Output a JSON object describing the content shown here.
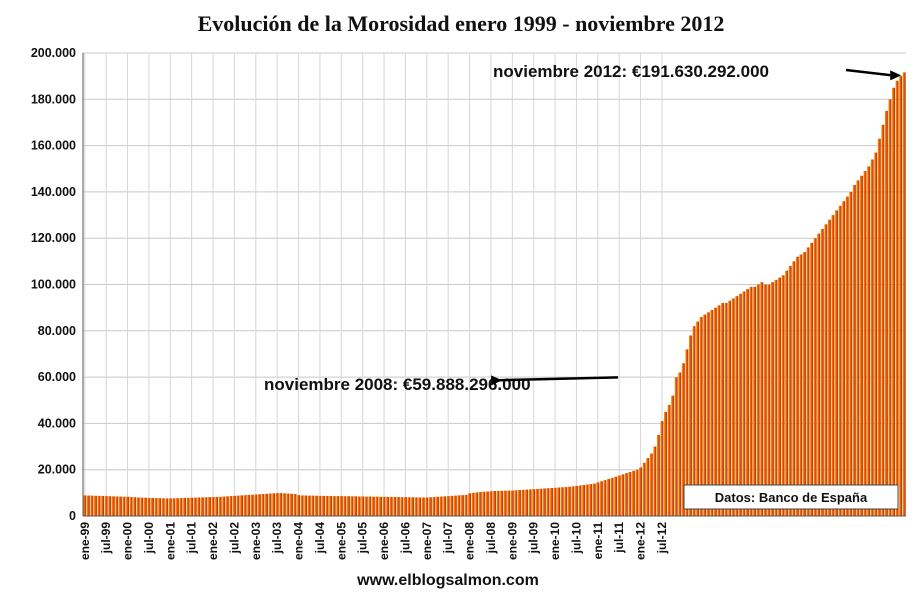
{
  "chart_data": {
    "type": "bar",
    "title": "Evolución de la Morosidad enero 1999 - noviembre 2012",
    "xlabel": "",
    "ylabel": "",
    "ylim": [
      0,
      200000
    ],
    "y_ticks": [
      "0",
      "20.000",
      "40.000",
      "60.000",
      "80.000",
      "100.000",
      "120.000",
      "140.000",
      "160.000",
      "180.000",
      "200.000"
    ],
    "x_tick_labels": [
      "ene-99",
      "jul-99",
      "ene-00",
      "jul-00",
      "ene-01",
      "jul-01",
      "ene-02",
      "jul-02",
      "ene-03",
      "jul-03",
      "ene-04",
      "jul-04",
      "ene-05",
      "jul-05",
      "ene-06",
      "jul-06",
      "ene-07",
      "jul-07",
      "ene-08",
      "jul-08",
      "ene-09",
      "jul-09",
      "ene-10",
      "jul-10",
      "ene-11",
      "jul-11",
      "ene-12",
      "jul-12"
    ],
    "x_start": "ene-99",
    "x_end": "nov-12",
    "series": [
      {
        "name": "Morosidad",
        "color": "#e85a0a",
        "values": [
          8900,
          8850,
          8800,
          8750,
          8700,
          8650,
          8600,
          8550,
          8500,
          8450,
          8400,
          8350,
          8300,
          8200,
          8100,
          8000,
          7950,
          7900,
          7850,
          7800,
          7750,
          7700,
          7650,
          7600,
          7600,
          7650,
          7700,
          7750,
          7800,
          7850,
          7900,
          7950,
          8000,
          8050,
          8100,
          8150,
          8200,
          8250,
          8300,
          8400,
          8500,
          8600,
          8700,
          8800,
          8900,
          9000,
          9100,
          9200,
          9300,
          9400,
          9500,
          9600,
          9700,
          9800,
          9900,
          9900,
          9800,
          9700,
          9600,
          9500,
          9000,
          8900,
          8850,
          8800,
          8800,
          8750,
          8700,
          8700,
          8650,
          8650,
          8600,
          8600,
          8600,
          8550,
          8550,
          8500,
          8500,
          8450,
          8450,
          8400,
          8400,
          8350,
          8350,
          8300,
          8300,
          8250,
          8250,
          8200,
          8200,
          8150,
          8150,
          8100,
          8100,
          8050,
          8000,
          8000,
          8000,
          8100,
          8200,
          8300,
          8400,
          8500,
          8600,
          8700,
          8800,
          8900,
          9000,
          9100,
          9800,
          10000,
          10200,
          10400,
          10500,
          10600,
          10700,
          10800,
          10850,
          10900,
          10950,
          11000,
          11000,
          11100,
          11200,
          11300,
          11400,
          11500,
          11600,
          11700,
          11800,
          11900,
          12000,
          12100,
          12200,
          12300,
          12400,
          12500,
          12650,
          12800,
          13000,
          13200,
          13400,
          13600,
          13800,
          14000,
          14500,
          15000,
          15500,
          16000,
          16500,
          17000,
          17500,
          18000,
          18500,
          19000,
          19500,
          20000,
          21000,
          23000,
          25000,
          27000,
          30000,
          35000,
          41000,
          45000,
          48000,
          52000,
          59888,
          62000,
          66000,
          72000,
          78000,
          82000,
          84000,
          86000,
          87000,
          88000,
          89000,
          90000,
          91000,
          92000,
          92000,
          93000,
          94000,
          95000,
          96000,
          97000,
          98000,
          99000,
          99000,
          100000,
          101000,
          100000,
          100000,
          101000,
          102000,
          103000,
          104000,
          106000,
          108000,
          110000,
          112000,
          113000,
          114000,
          116000,
          118000,
          120000,
          122000,
          124000,
          126000,
          128000,
          130000,
          132000,
          134000,
          136000,
          138000,
          140000,
          143000,
          145000,
          147000,
          149000,
          151000,
          154000,
          157000,
          163000,
          169000,
          175000,
          180000,
          185000,
          188000,
          190000,
          191630
        ]
      }
    ],
    "annotations": [
      {
        "text": "noviembre 2008:  €59.888.296.000",
        "date": "nov-08",
        "value": 59888
      },
      {
        "text": "noviembre 2012:  €191.630.292.000",
        "date": "nov-12",
        "value": 191630
      }
    ],
    "source_label": "Datos: Banco de España"
  },
  "footer": {
    "website": "www.elblogsalmon.com"
  }
}
